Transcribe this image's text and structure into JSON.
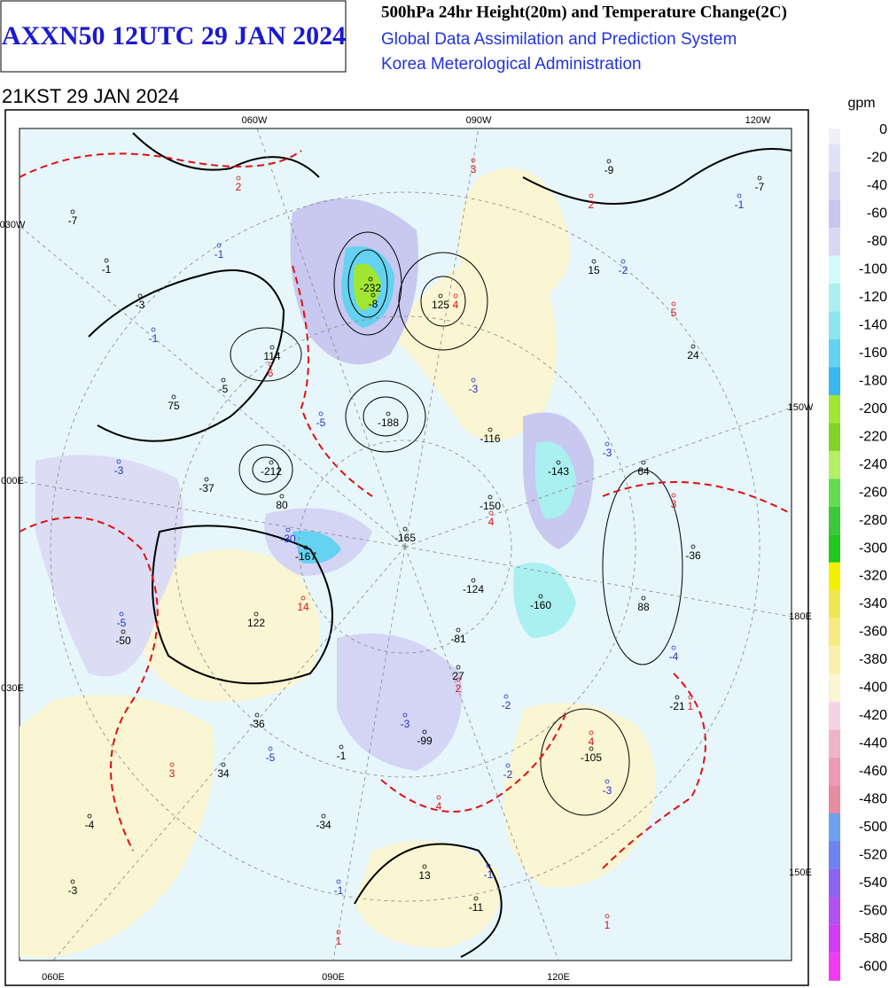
{
  "header": {
    "title": "AXXN50 12UTC 29 JAN 2024",
    "product": "500hPa 24hr Height(20m) and Temperature Change(2C)",
    "system": "Global Data Assimilation and Prediction System",
    "agency": "Korea Meterological Administration",
    "valid_time": "21KST 29 JAN 2024"
  },
  "colorbar": {
    "unit": "gpm",
    "levels": [
      0,
      -20,
      -40,
      -60,
      -80,
      -100,
      -120,
      -140,
      -160,
      -180,
      -200,
      -220,
      -240,
      -260,
      -280,
      -300,
      -320,
      -340,
      -360,
      -380,
      -400,
      -420,
      -440,
      -460,
      -480,
      -500,
      -520,
      -540,
      -560,
      -580,
      -600
    ],
    "colors": [
      "#f0f0fa",
      "#e2e2f7",
      "#d4d4f4",
      "#c6c6f1",
      "#d8d8f4",
      "#d2fafa",
      "#aaf0f0",
      "#8ce6f0",
      "#64d2f0",
      "#3cb4f0",
      "#a0e632",
      "#82d228",
      "#b4f064",
      "#64dc50",
      "#3cc83c",
      "#1ec81e",
      "#f0f000",
      "#f0e650",
      "#f5eb82",
      "#faf0aa",
      "#faf5d2",
      "#f5d2e6",
      "#f0b4c8",
      "#eb9bb4",
      "#e68ca0",
      "#6ea0f0",
      "#6e82f0",
      "#8c64f0",
      "#b450f0",
      "#d23cf0",
      "#f03cf0"
    ]
  },
  "map": {
    "longitude_labels": [
      "060W",
      "090W",
      "120W",
      "030W",
      "150W",
      "000E",
      "180E",
      "030E",
      "150E",
      "060E",
      "090E",
      "120E"
    ],
    "height_change_color": "#000000",
    "height_change_labels": [
      -7,
      -1,
      -3,
      114,
      -5,
      75,
      -232,
      -8,
      125,
      -188,
      -116,
      -212,
      -37,
      80,
      -150,
      -143,
      64,
      -9,
      15,
      24,
      -7,
      -165,
      -167,
      -124,
      -160,
      88,
      -36,
      122,
      -50,
      -81,
      27,
      -21,
      -36,
      -99,
      -1,
      -105,
      34,
      -4,
      -34,
      13,
      -3,
      -11
    ],
    "temperature_negative_color": "#2233cc",
    "temperature_negative_labels": [
      -1,
      -1,
      -3,
      -5,
      -3,
      -2,
      -1,
      -3,
      -30,
      -5,
      -4,
      -2,
      -3,
      -5,
      -2,
      -3,
      -1,
      -1
    ],
    "temperature_positive_color": "#dd1111",
    "temperature_positive_labels": [
      2,
      3,
      2,
      5,
      4,
      6,
      3,
      4,
      14,
      2,
      1,
      4,
      3,
      4,
      1,
      1
    ]
  }
}
